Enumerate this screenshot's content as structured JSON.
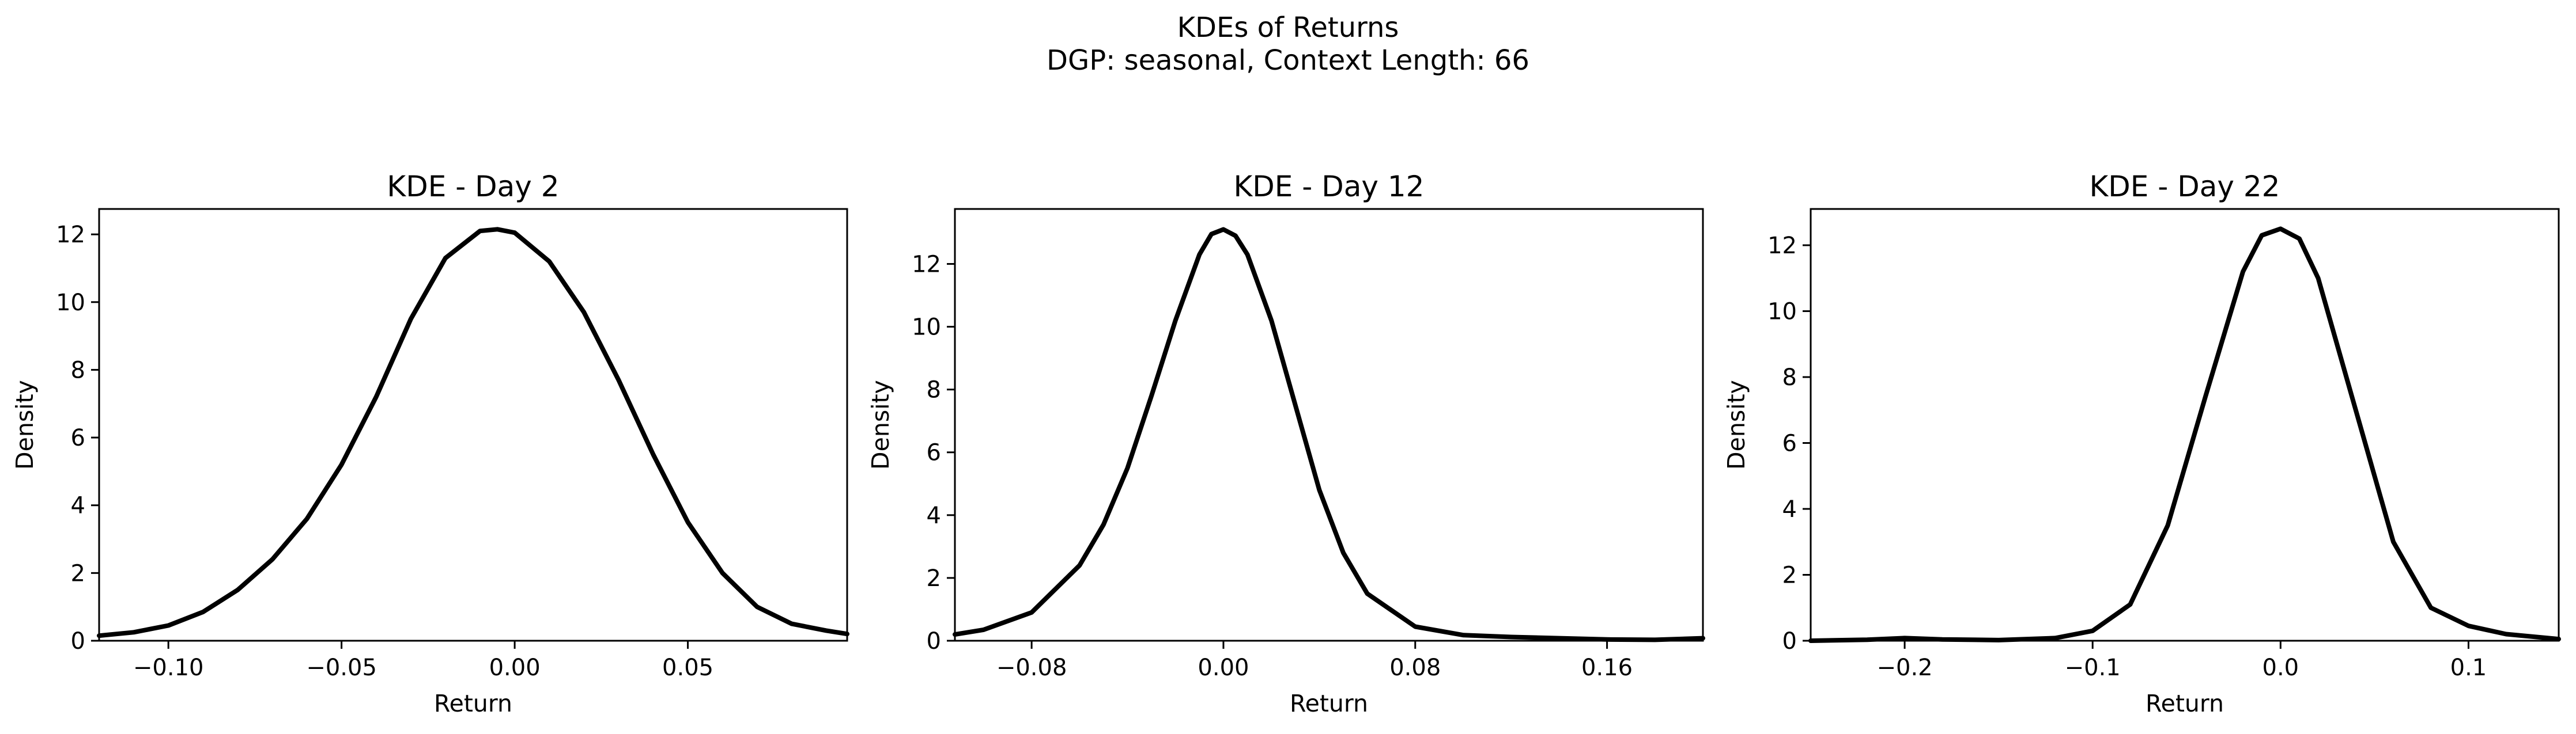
{
  "figure": {
    "suptitle_line1": "KDEs of Returns",
    "suptitle_line2": "DGP: seasonal, Context Length: 66"
  },
  "chart_data": [
    {
      "type": "line",
      "title": "KDE - Day 2",
      "xlabel": "Return",
      "ylabel": "Density",
      "xlim": [
        -0.12,
        0.096
      ],
      "ylim": [
        0,
        12.75
      ],
      "xticks": [
        -0.1,
        -0.05,
        0.0,
        0.05
      ],
      "xtick_labels": [
        "−0.10",
        "−0.05",
        "0.00",
        "0.05"
      ],
      "yticks": [
        0,
        2,
        4,
        6,
        8,
        10,
        12
      ],
      "ytick_labels": [
        "0",
        "2",
        "4",
        "6",
        "8",
        "10",
        "12"
      ],
      "grid": false,
      "series": [
        {
          "color": "#000000",
          "x": [
            -0.12,
            -0.11,
            -0.1,
            -0.09,
            -0.08,
            -0.07,
            -0.06,
            -0.05,
            -0.04,
            -0.03,
            -0.02,
            -0.01,
            -0.005,
            0.0,
            0.01,
            0.02,
            0.03,
            0.04,
            0.05,
            0.06,
            0.07,
            0.08,
            0.09,
            0.096
          ],
          "y": [
            0.15,
            0.25,
            0.45,
            0.85,
            1.5,
            2.4,
            3.6,
            5.2,
            7.2,
            9.5,
            11.3,
            12.1,
            12.15,
            12.05,
            11.2,
            9.7,
            7.7,
            5.5,
            3.5,
            2.0,
            1.0,
            0.5,
            0.3,
            0.2
          ]
        }
      ]
    },
    {
      "type": "line",
      "title": "KDE - Day 12",
      "xlabel": "Return",
      "ylabel": "Density",
      "xlim": [
        -0.112,
        0.2
      ],
      "ylim": [
        0,
        13.75
      ],
      "xticks": [
        -0.08,
        0.0,
        0.08,
        0.16
      ],
      "xtick_labels": [
        "−0.08",
        "0.00",
        "0.08",
        "0.16"
      ],
      "yticks": [
        0,
        2,
        4,
        6,
        8,
        10,
        12
      ],
      "ytick_labels": [
        "0",
        "2",
        "4",
        "6",
        "8",
        "10",
        "12"
      ],
      "grid": false,
      "series": [
        {
          "color": "#000000",
          "x": [
            -0.112,
            -0.1,
            -0.08,
            -0.06,
            -0.05,
            -0.04,
            -0.03,
            -0.02,
            -0.01,
            -0.005,
            0.0,
            0.005,
            0.01,
            0.02,
            0.03,
            0.04,
            0.05,
            0.06,
            0.08,
            0.1,
            0.12,
            0.14,
            0.16,
            0.18,
            0.2
          ],
          "y": [
            0.2,
            0.35,
            0.9,
            2.4,
            3.7,
            5.5,
            7.8,
            10.2,
            12.3,
            12.95,
            13.1,
            12.9,
            12.3,
            10.2,
            7.5,
            4.8,
            2.8,
            1.5,
            0.45,
            0.18,
            0.12,
            0.08,
            0.04,
            0.03,
            0.08
          ]
        }
      ]
    },
    {
      "type": "line",
      "title": "KDE - Day 22",
      "xlabel": "Return",
      "ylabel": "Density",
      "xlim": [
        -0.25,
        0.148
      ],
      "ylim": [
        0,
        13.1
      ],
      "xticks": [
        -0.2,
        -0.1,
        0.0,
        0.1
      ],
      "xtick_labels": [
        "−0.2",
        "−0.1",
        "0.0",
        "0.1"
      ],
      "yticks": [
        0,
        2,
        4,
        6,
        8,
        10,
        12
      ],
      "ytick_labels": [
        "0",
        "2",
        "4",
        "6",
        "8",
        "10",
        "12"
      ],
      "grid": false,
      "series": [
        {
          "color": "#000000",
          "x": [
            -0.25,
            -0.22,
            -0.2,
            -0.18,
            -0.15,
            -0.12,
            -0.1,
            -0.08,
            -0.06,
            -0.04,
            -0.02,
            -0.01,
            0.0,
            0.01,
            0.02,
            0.04,
            0.06,
            0.08,
            0.1,
            0.12,
            0.148
          ],
          "y": [
            0.0,
            0.03,
            0.08,
            0.04,
            0.02,
            0.08,
            0.3,
            1.1,
            3.5,
            7.4,
            11.2,
            12.3,
            12.5,
            12.2,
            11.0,
            7.0,
            3.0,
            1.0,
            0.45,
            0.2,
            0.05
          ]
        }
      ]
    }
  ]
}
